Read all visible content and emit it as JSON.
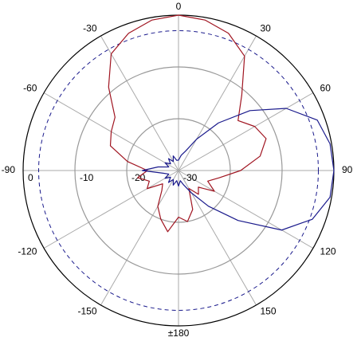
{
  "chart_data": {
    "type": "polar",
    "x": [
      0,
      10,
      20,
      30,
      40,
      50,
      60,
      70,
      80,
      90,
      100,
      110,
      120,
      130,
      140,
      150,
      160,
      170,
      180,
      190,
      200,
      210,
      220,
      230,
      240,
      250,
      260,
      270,
      280,
      290,
      300,
      310,
      320,
      330,
      340,
      350
    ],
    "series": [
      {
        "color": "#a01420",
        "values": [
          0,
          -0.5,
          -1.8,
          -4.5,
          -11,
          -15,
          -13,
          -12,
          -14,
          -18,
          -22,
          -24,
          -22,
          -25,
          -24,
          -26,
          -22,
          -20,
          -21,
          -18,
          -20,
          -22,
          -25,
          -26,
          -23,
          -24,
          -22,
          -24,
          -20,
          -16,
          -15,
          -14,
          -9,
          -4,
          -1.8,
          -0.5
        ]
      },
      {
        "color": "#1a1a8c",
        "values": [
          -28,
          -27,
          -26,
          -23,
          -18,
          -12,
          -6,
          -1.5,
          -0.3,
          0,
          -0.3,
          -2.5,
          -7,
          -15,
          -21,
          -25,
          -27,
          -28,
          -27,
          -28,
          -27,
          -28,
          -27,
          -28,
          -27,
          -28,
          -27,
          -23,
          -26,
          -28,
          -27,
          -28,
          -27,
          -28,
          -27,
          -28
        ]
      }
    ],
    "rlim": [
      -30,
      0
    ],
    "rticks": [
      0,
      -10,
      -20,
      -30
    ],
    "angle_ticks": [
      0,
      30,
      60,
      90,
      120,
      150,
      {
        "value": 180,
        "label": "±180"
      },
      -150,
      -120,
      -90,
      -60,
      -30
    ],
    "dashed_circle": -3,
    "grid": true
  }
}
